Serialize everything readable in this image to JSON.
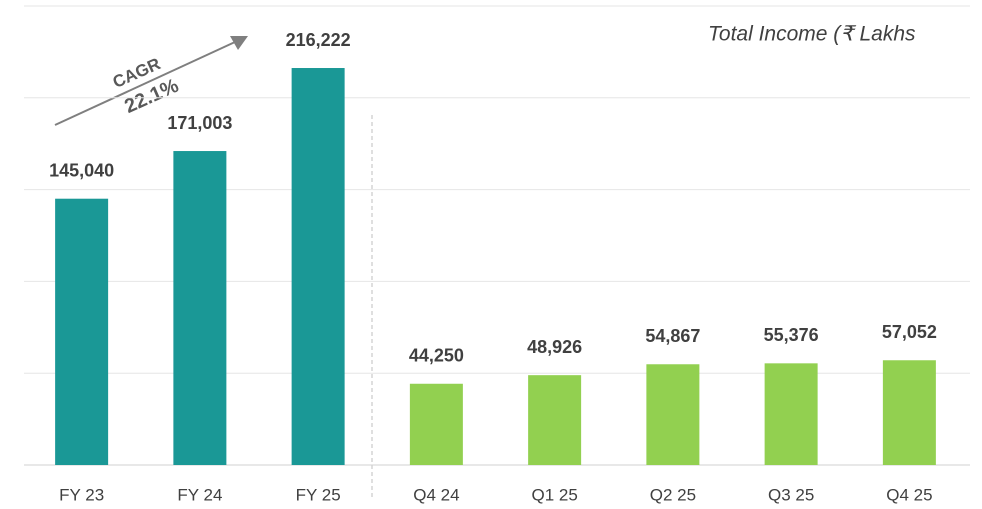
{
  "chart_data": {
    "type": "bar",
    "title": "Total Income (₹ Lakhs",
    "annotations": [
      "CAGR",
      "22.1%"
    ],
    "categories": [
      "FY 23",
      "FY 24",
      "FY 25",
      "Q4 24",
      "Q1 25",
      "Q2 25",
      "Q3 25",
      "Q4 25"
    ],
    "values": [
      145040,
      171003,
      216222,
      44250,
      48926,
      54867,
      55376,
      57052
    ],
    "value_labels": [
      "145,040",
      "171,003",
      "216,222",
      "44,250",
      "48,926",
      "54,867",
      "55,376",
      "57,052"
    ],
    "colors": [
      "#1a9896",
      "#1a9896",
      "#1a9896",
      "#92d050",
      "#92d050",
      "#92d050",
      "#92d050",
      "#92d050"
    ],
    "ylim": [
      0,
      250000
    ],
    "yticks": [
      0,
      50000,
      100000,
      150000,
      200000,
      250000
    ],
    "grid": true
  }
}
